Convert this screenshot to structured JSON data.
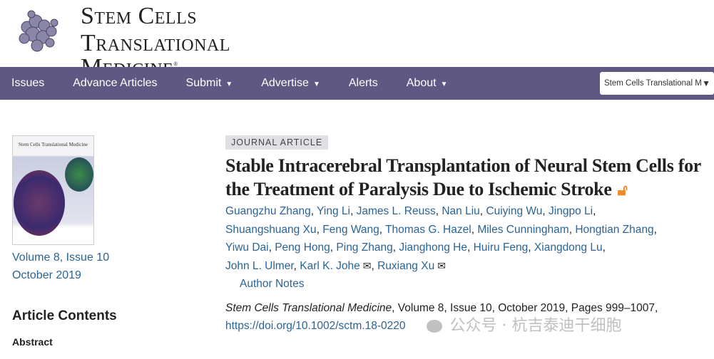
{
  "header": {
    "logo_line1": "Stem Cells",
    "logo_line2": "Translational Medicine",
    "logo_mark": "®"
  },
  "nav": {
    "items": [
      {
        "label": "Issues",
        "caret": false
      },
      {
        "label": "Advance Articles",
        "caret": false
      },
      {
        "label": "Submit",
        "caret": true
      },
      {
        "label": "Advertise",
        "caret": true
      },
      {
        "label": "Alerts",
        "caret": false
      },
      {
        "label": "About",
        "caret": true
      }
    ],
    "caret_glyph": "▼",
    "journal_select": "Stem Cells Translational M",
    "nav_color": "#5e5883"
  },
  "sidebar": {
    "cover_title": "Stem Cells Translational Medicine",
    "volume_issue": "Volume 8, Issue 10",
    "date": "October 2019",
    "contents_heading": "Article Contents",
    "contents_items": [
      "Abstract"
    ]
  },
  "article": {
    "type": "JOURNAL ARTICLE",
    "title": "Stable Intracerebral Transplantation of Neural Stem Cells for the Treatment of Paralysis Due to Ischemic Stroke",
    "open_access_icon": "open-lock-icon",
    "authors": [
      {
        "name": "Guangzhu Zhang"
      },
      {
        "name": "Ying Li"
      },
      {
        "name": "James L. Reuss"
      },
      {
        "name": "Nan Liu"
      },
      {
        "name": "Cuiying Wu"
      },
      {
        "name": "Jingpo Li"
      },
      {
        "name": "Shuangshuang Xu"
      },
      {
        "name": "Feng Wang"
      },
      {
        "name": "Thomas G. Hazel"
      },
      {
        "name": "Miles Cunningham"
      },
      {
        "name": "Hongtian Zhang"
      },
      {
        "name": "Yiwu Dai"
      },
      {
        "name": "Peng Hong"
      },
      {
        "name": "Ping Zhang"
      },
      {
        "name": "Jianghong He"
      },
      {
        "name": "Huiru Feng"
      },
      {
        "name": "Xiangdong Lu"
      },
      {
        "name": "John L. Ulmer"
      },
      {
        "name": "Karl K. Johe",
        "email": true
      },
      {
        "name": "Ruxiang Xu",
        "email": true
      }
    ],
    "author_notes": "Author Notes",
    "citation_journal": "Stem Cells Translational Medicine",
    "citation_rest": ", Volume 8, Issue 10, October 2019, Pages 999–1007,",
    "doi": "https://doi.org/10.1002/sctm.18-0220",
    "link_color": "#2a6496"
  },
  "watermark": "公众号 · 杭吉泰迪干细胞"
}
